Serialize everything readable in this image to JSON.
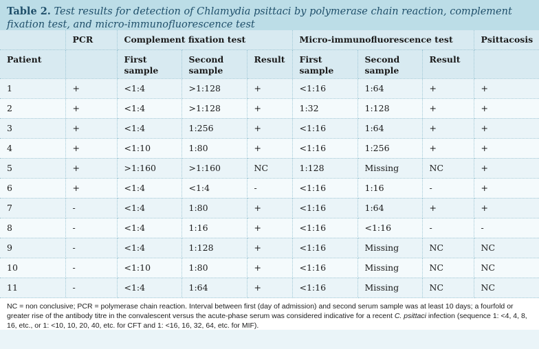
{
  "caption": {
    "lead": "Table 2.",
    "title": "Test results for detection of Chlamydia psittaci by polymerase chain reaction, complement fixation test, and micro-immunofluorescence test"
  },
  "table": {
    "group_headers": {
      "pcr": "PCR",
      "cft": "Complement fixation test",
      "mif": "Micro-immunofluorescence test",
      "psittacosis": "Psittacosis"
    },
    "sub_headers": {
      "patient": "Patient",
      "cft_first": "First sample",
      "cft_second": "Second sample",
      "cft_result": "Result",
      "mif_first": "First sample",
      "mif_second": "Second sample",
      "mif_result": "Result"
    },
    "rows": [
      [
        "1",
        "+",
        "<1:4",
        ">1:128",
        "+",
        "<1:16",
        "1:64",
        "+",
        "+"
      ],
      [
        "2",
        "+",
        "<1:4",
        ">1:128",
        "+",
        "1:32",
        "1:128",
        "+",
        "+"
      ],
      [
        "3",
        "+",
        "<1:4",
        "1:256",
        "+",
        "<1:16",
        "1:64",
        "+",
        "+"
      ],
      [
        "4",
        "+",
        "<1:10",
        "1:80",
        "+",
        "<1:16",
        "1:256",
        "+",
        "+"
      ],
      [
        "5",
        "+",
        ">1:160",
        ">1:160",
        "NC",
        "1:128",
        "Missing",
        "NC",
        "+"
      ],
      [
        "6",
        "+",
        "<1:4",
        "<1:4",
        "-",
        "<1:16",
        "1:16",
        "-",
        "+"
      ],
      [
        "7",
        "-",
        "<1:4",
        "1:80",
        "+",
        "<1:16",
        "1:64",
        "+",
        "+"
      ],
      [
        "8",
        "-",
        "<1:4",
        "1:16",
        "+",
        "<1:16",
        "<1:16",
        "-",
        "-"
      ],
      [
        "9",
        "-",
        "<1:4",
        "1:128",
        "+",
        "<1:16",
        "Missing",
        "NC",
        "NC"
      ],
      [
        "10",
        "-",
        "<1:10",
        "1:80",
        "+",
        "<1:16",
        "Missing",
        "NC",
        "NC"
      ],
      [
        "11",
        "-",
        "<1:4",
        "1:64",
        "+",
        "<1:16",
        "Missing",
        "NC",
        "NC"
      ]
    ]
  },
  "footnote": {
    "part1": "NC = non conclusive; PCR = polymerase chain reaction. Interval between first (day of admission) and second serum sample was at least 10 days; a fourfold or greater rise of the antibody titre in the convalescent versus the acute-phase serum was considered indicative for a recent ",
    "organism": "C. psittaci",
    "part2": " infection (sequence 1: <4, 4, 8, 16, etc., or 1: <10, 10, 20, 40, etc. for CFT and 1: <16, 16, 32, 64, etc. for MIF)."
  },
  "colors": {
    "caption_bg": "#bcdde7",
    "caption_text": "#1f4f6a",
    "table_bg": "#eaf4f8",
    "header_bg": "#d8eaf1",
    "rule": "#9fc7d5"
  }
}
